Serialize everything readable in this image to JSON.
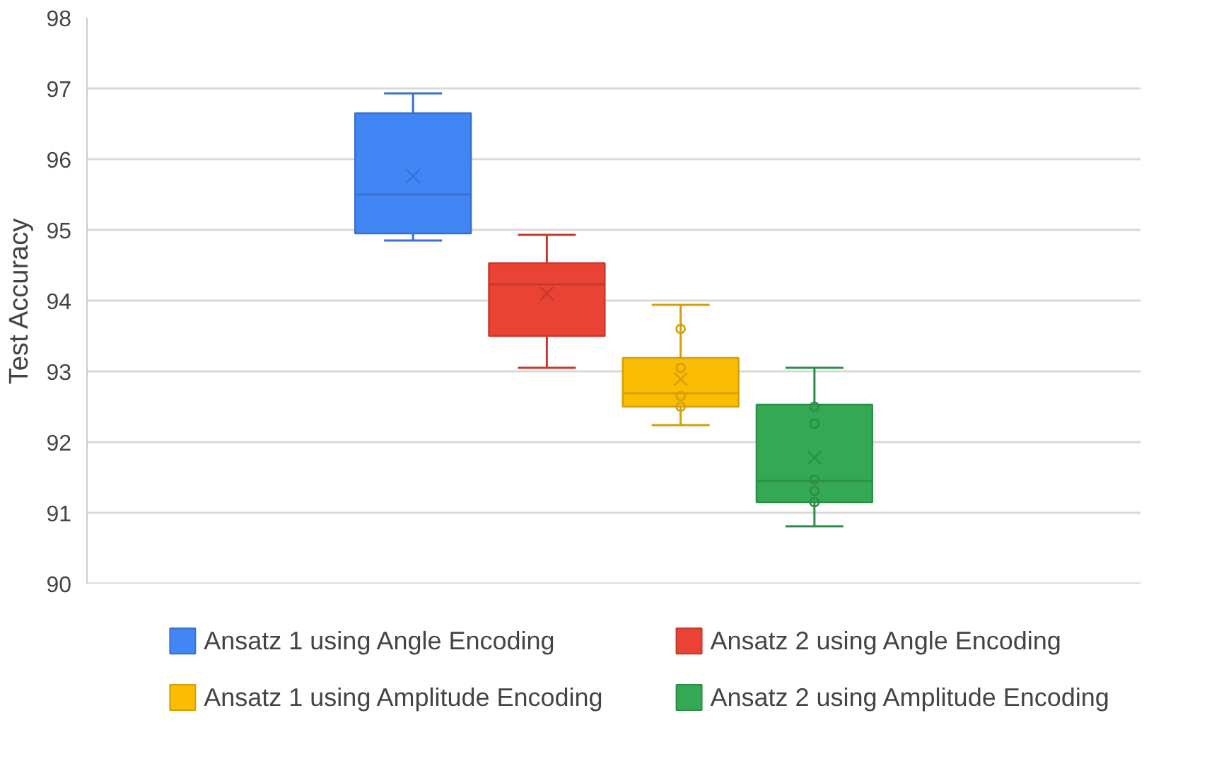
{
  "chart_data": {
    "type": "box",
    "ylabel": "Test Accuracy",
    "categories": [
      null
    ],
    "ylim": [
      90,
      98
    ],
    "yticks": [
      90,
      91,
      92,
      93,
      94,
      95,
      96,
      97,
      98
    ],
    "grid": "y",
    "legend": "bottom",
    "marker": "circle",
    "series": [
      {
        "name": "Ansatz 1 using Angle Encoding",
        "color": "#4285f4",
        "boxes": [
          {
            "low": 94.85,
            "q1": 94.95,
            "median": 95.5,
            "q3": 96.65,
            "high": 96.93,
            "mean": 95.76
          }
        ]
      },
      {
        "name": "Ansatz 2 using Angle Encoding",
        "color": "#ea4335",
        "boxes": [
          {
            "low": 93.05,
            "q1": 93.5,
            "median": 94.23,
            "q3": 94.53,
            "high": 94.93,
            "mean": 94.1
          }
        ]
      },
      {
        "name": "Ansatz 1 using Amplitude Encoding",
        "color": "#fbbc04",
        "boxes": [
          {
            "low": 92.24,
            "q1": 92.5,
            "median": 92.69,
            "q3": 93.19,
            "high": 93.94,
            "mean": 92.89,
            "outliers": [
              93.6,
              93.05,
              92.65,
              92.5
            ]
          }
        ]
      },
      {
        "name": "Ansatz 2 using Amplitude Encoding",
        "color": "#34a853",
        "boxes": [
          {
            "low": 90.81,
            "q1": 91.15,
            "median": 91.45,
            "q3": 92.53,
            "high": 93.05,
            "mean": 91.78,
            "outliers": [
              92.5,
              92.26,
              91.47,
              91.31,
              91.15
            ]
          }
        ]
      }
    ]
  }
}
